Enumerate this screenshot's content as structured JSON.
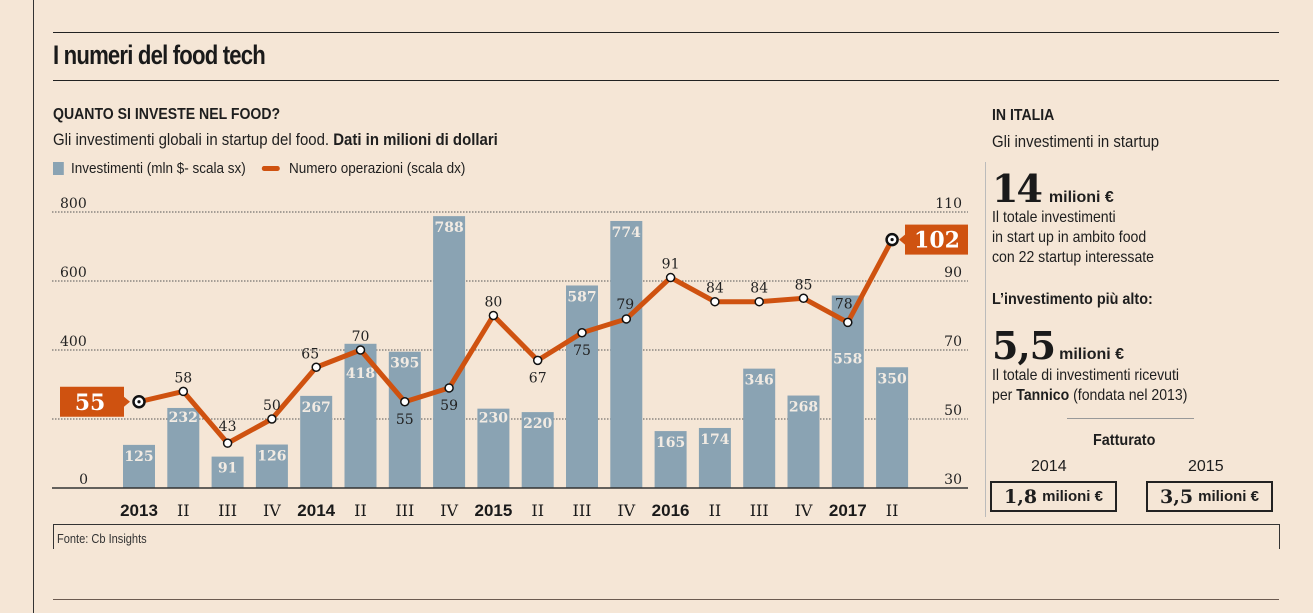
{
  "header": {
    "title": "I numeri del food tech"
  },
  "chart_section": {
    "heading": "QUANTO SI INVESTE NEL FOOD?",
    "description": "Gli investimenti globali in startup del food.",
    "description_bold": "Dati in milioni di dollari",
    "legend": {
      "bars": "Investimenti (mln $- scala sx)",
      "line": "Numero operazioni (scala dx)"
    },
    "source": "Fonte: Cb Insights"
  },
  "chart_data": {
    "type": "bar+line",
    "title": "QUANTO SI INVESTE NEL FOOD?",
    "subtitle": "Gli investimenti globali in startup del food. Dati in milioni di dollari",
    "categories": [
      "2013",
      "II",
      "III",
      "IV",
      "2014",
      "II",
      "III",
      "IV",
      "2015",
      "II",
      "III",
      "IV",
      "2016",
      "II",
      "III",
      "IV",
      "2017",
      "II"
    ],
    "bold_categories": [
      "2013",
      "2014",
      "2015",
      "2016",
      "2017"
    ],
    "series": [
      {
        "name": "Investimenti (mln $- scala sx)",
        "type": "bar",
        "axis": "left",
        "color": "#8aa3b3",
        "values": [
          125,
          232,
          91,
          126,
          267,
          418,
          395,
          788,
          230,
          220,
          587,
          774,
          165,
          174,
          346,
          268,
          558,
          350
        ]
      },
      {
        "name": "Numero operazioni (scala dx)",
        "type": "line",
        "axis": "right",
        "color": "#cf5210",
        "values": [
          55,
          58,
          43,
          50,
          65,
          70,
          55,
          59,
          80,
          67,
          75,
          79,
          91,
          84,
          84,
          85,
          78,
          102
        ]
      }
    ],
    "left_axis": {
      "ylim": [
        0,
        800
      ],
      "ticks": [
        0,
        200,
        400,
        600,
        800
      ],
      "tick_labels": [
        "0",
        "",
        "400",
        "600",
        "800"
      ]
    },
    "right_axis": {
      "ylim": [
        30,
        110
      ],
      "ticks": [
        30,
        50,
        70,
        90,
        110
      ],
      "tick_labels": [
        "30",
        "50",
        "70",
        "90",
        "110"
      ]
    },
    "highlight_labels": {
      "first": "55",
      "last": "102"
    },
    "grid": true,
    "legend_position": "top-left"
  },
  "side": {
    "heading": "IN ITALIA",
    "subheading": "Gli investimenti in startup",
    "total_value": "14",
    "total_unit": "milioni €",
    "total_text": [
      "Il totale investimenti",
      "in start up in ambito food",
      "con 22 startup interessate"
    ],
    "highest_label": "L’investimento più alto:",
    "highest_value": "5,5",
    "highest_unit": "milioni €",
    "highest_text_1": "Il totale di investimenti ricevuti",
    "highest_text_2_pre": "per ",
    "highest_text_2_bold": "Tannico",
    "highest_text_2_post": " (fondata nel 2013)",
    "revenue_label": "Fatturato",
    "revenue": [
      {
        "year": "2014",
        "value": "1,8",
        "unit": "milioni €"
      },
      {
        "year": "2015",
        "value": "3,5",
        "unit": "milioni €"
      }
    ]
  },
  "colors": {
    "background": "#f5e6d6",
    "bar": "#8aa3b3",
    "line": "#cf5210",
    "text": "#1e1e1e"
  }
}
